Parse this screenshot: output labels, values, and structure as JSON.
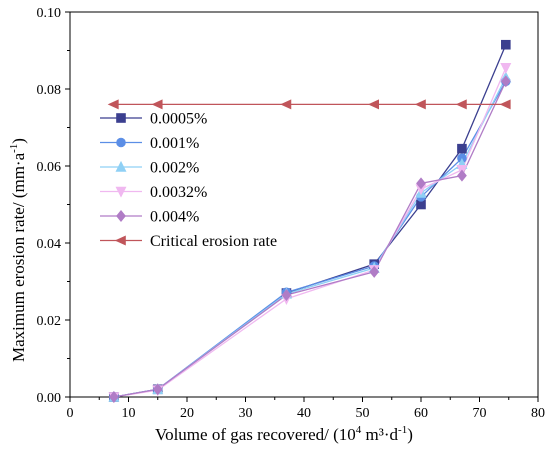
{
  "chart_data": {
    "type": "line",
    "xlabel": "Volume of gas recovered/ (10",
    "xlabel_sup": "4",
    "xlabel_unit": " m³·d",
    "xlabel_unit_sup": "-1",
    "xlabel_close": ")",
    "ylabel": "Maximum erosion rate/ (mm·a",
    "ylabel_sup": "-1",
    "ylabel_close": ")",
    "xlim": [
      0,
      80
    ],
    "ylim": [
      0,
      0.1
    ],
    "x_ticks": [
      0,
      10,
      20,
      30,
      40,
      50,
      60,
      70,
      80
    ],
    "x_tick_labels": [
      "0",
      "10",
      "20",
      "30",
      "40",
      "50",
      "60",
      "70",
      "80"
    ],
    "y_ticks": [
      0,
      0.02,
      0.04,
      0.06,
      0.08,
      0.1
    ],
    "y_tick_labels": [
      "0.00",
      "0.02",
      "0.04",
      "0.06",
      "0.08",
      "0.10"
    ],
    "grid": false,
    "legend_position": "center-left",
    "x": [
      7.5,
      15,
      37,
      52,
      60,
      67,
      74.5
    ],
    "series": [
      {
        "name": "0.0005%",
        "color": "#3b3f8f",
        "marker": "square",
        "values": [
          0.0,
          0.002,
          0.027,
          0.0345,
          0.05,
          0.0645,
          0.0915
        ]
      },
      {
        "name": "0.001%",
        "color": "#5b8ee6",
        "marker": "circle",
        "values": [
          0.0,
          0.002,
          0.0272,
          0.034,
          0.052,
          0.062,
          0.082
        ]
      },
      {
        "name": "0.002%",
        "color": "#8fd0f5",
        "marker": "triangle-up",
        "values": [
          0.0,
          0.002,
          0.0268,
          0.0335,
          0.053,
          0.0605,
          0.083
        ]
      },
      {
        "name": "0.0032%",
        "color": "#f0b8f0",
        "marker": "triangle-down",
        "values": [
          0.0,
          0.0018,
          0.0255,
          0.033,
          0.054,
          0.059,
          0.0855
        ]
      },
      {
        "name": "0.004%",
        "color": "#b07cc6",
        "marker": "diamond",
        "values": [
          0.0,
          0.002,
          0.0265,
          0.0325,
          0.0555,
          0.0575,
          0.082
        ]
      },
      {
        "name": "Critical erosion rate",
        "color": "#c0555a",
        "marker": "triangle-left",
        "x": [
          7.5,
          15,
          37,
          52,
          60,
          67,
          74.5
        ],
        "values": [
          0.076,
          0.076,
          0.076,
          0.076,
          0.076,
          0.076,
          0.076
        ]
      }
    ]
  }
}
